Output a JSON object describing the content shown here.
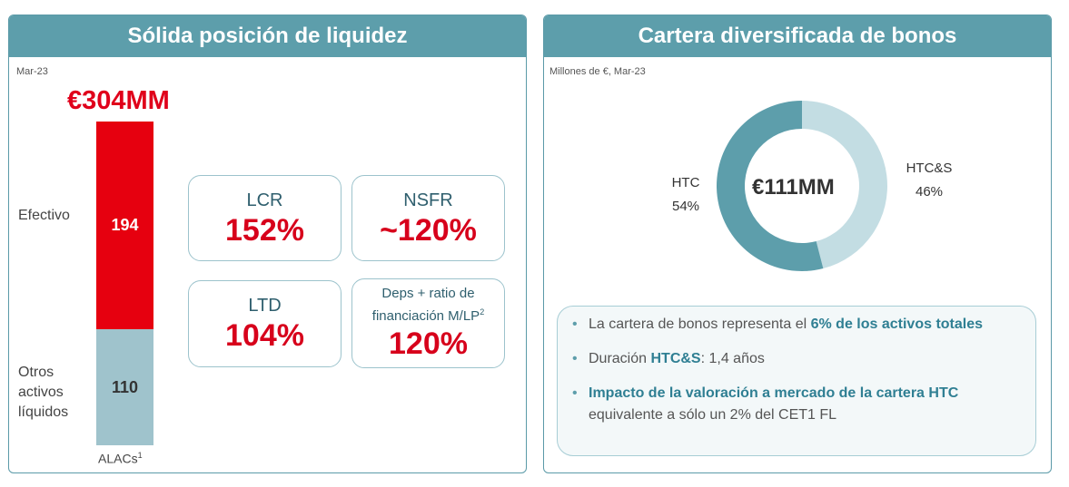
{
  "left": {
    "title": "Sólida posición de liquidez",
    "date_note": "Mar-23",
    "total_label": "€304MM",
    "segments": [
      {
        "name": "Efectivo",
        "value": 194,
        "color": "#e6000f"
      },
      {
        "name_lines": [
          "Otros",
          "activos",
          "líquidos"
        ],
        "value": 110,
        "color": "#9fc3cc"
      }
    ],
    "x_label": "ALACs",
    "x_label_sup": "1",
    "kpis": [
      {
        "name": "LCR",
        "value": "152%"
      },
      {
        "name": "NSFR",
        "value": "~120%"
      },
      {
        "name": "LTD",
        "value": "104%"
      },
      {
        "name_line1": "Deps + ratio de",
        "name_line2": "financiación M/LP",
        "name_sup": "2",
        "value": "120%"
      }
    ]
  },
  "right": {
    "title": "Cartera diversificada de bonos",
    "unit_note": "Millones de €, Mar-23",
    "center_label": "€111MM",
    "bullets": [
      {
        "pre": "La cartera de bonos representa el ",
        "hl": "6% de los activos totales",
        "post": ""
      },
      {
        "pre": "Duración ",
        "hl": "HTC&S",
        "post": ": 1,4 años"
      },
      {
        "pre": "",
        "hl": "Impacto de la valoración a mercado de la cartera HTC",
        "post": " equivalente a sólo un 2% del CET1 FL"
      }
    ]
  },
  "chart_data": [
    {
      "type": "bar",
      "stacked": true,
      "categories": [
        "ALACs"
      ],
      "series": [
        {
          "name": "Efectivo",
          "values": [
            194
          ]
        },
        {
          "name": "Otros activos líquidos",
          "values": [
            110
          ]
        }
      ],
      "title": "Sólida posición de liquidez",
      "total": 304
    },
    {
      "type": "pie",
      "donut": true,
      "title": "Cartera diversificada de bonos",
      "labels": [
        "HTC",
        "HTC&S"
      ],
      "values": [
        54,
        46
      ],
      "value_labels": [
        "54%",
        "46%"
      ],
      "colors": [
        "#5d9eab",
        "#c3dde3"
      ],
      "center_text": "€111MM"
    }
  ]
}
